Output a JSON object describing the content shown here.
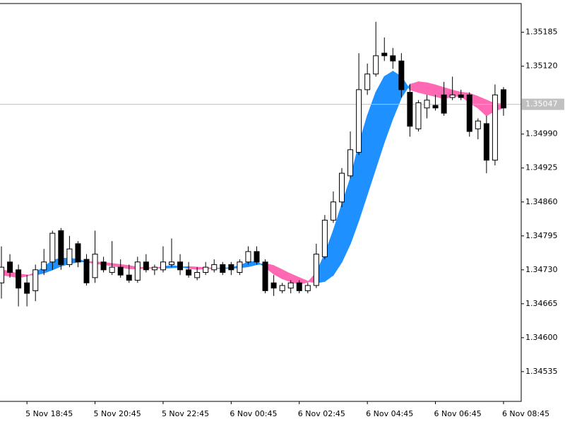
{
  "chart_data": {
    "type": "candlestick",
    "categories": [
      null,
      null,
      null,
      "5 Nov 18:45",
      null,
      null,
      null,
      null,
      null,
      null,
      null,
      "5 Nov 20:45",
      null,
      null,
      null,
      null,
      null,
      null,
      null,
      "5 Nov 22:45",
      null,
      null,
      null,
      null,
      null,
      null,
      null,
      "6 Nov 00:45",
      null,
      null,
      null,
      null,
      null,
      null,
      null,
      "6 Nov 02:45",
      null,
      null,
      null,
      null,
      null,
      null,
      null,
      "6 Nov 04:45",
      null,
      null,
      null,
      null,
      null,
      null,
      null,
      "6 Nov 06:45",
      null,
      null,
      null,
      null,
      null,
      null,
      null,
      "6 Nov 08:45"
    ],
    "open": [
      1.34705,
      1.34745,
      1.3473,
      1.34705,
      1.3469,
      1.3473,
      1.34745,
      1.34805,
      1.3474,
      1.3478,
      1.3475,
      1.34715,
      1.34745,
      1.34725,
      1.34735,
      1.3472,
      1.3471,
      1.34745,
      1.3473,
      1.3473,
      1.3474,
      1.34745,
      1.3473,
      1.34715,
      1.34725,
      1.3473,
      1.3474,
      1.3474,
      1.34725,
      1.34745,
      1.34765,
      1.34745,
      1.34705,
      1.3469,
      1.34695,
      1.34705,
      1.3469,
      1.347,
      1.34755,
      1.34825,
      1.3486,
      1.3491,
      1.34955,
      1.35075,
      1.35105,
      1.35145,
      1.3514,
      1.3513,
      1.3507,
      1.35,
      1.3504,
      1.35045,
      1.35065,
      1.3506,
      1.35065,
      1.35065,
      1.35,
      1.3501,
      1.3494,
      1.35075
    ],
    "high": [
      1.34775,
      1.3476,
      1.3474,
      1.3472,
      1.3474,
      1.3477,
      1.34805,
      1.3481,
      1.34795,
      1.34785,
      1.3476,
      1.34805,
      1.34755,
      1.34785,
      1.3475,
      1.3474,
      1.34755,
      1.3476,
      1.3474,
      1.34775,
      1.3479,
      1.3476,
      1.34745,
      1.34735,
      1.34745,
      1.3475,
      1.34745,
      1.34745,
      1.3475,
      1.34775,
      1.34775,
      1.3475,
      1.3472,
      1.34705,
      1.3471,
      1.3471,
      1.34705,
      1.3478,
      1.34835,
      1.3488,
      1.34925,
      1.34995,
      1.35145,
      1.35125,
      1.35205,
      1.35175,
      1.35155,
      1.35145,
      1.35085,
      1.35055,
      1.35065,
      1.35065,
      1.3509,
      1.351,
      1.35075,
      1.3507,
      1.3502,
      1.35025,
      1.35085,
      1.3508
    ],
    "low": [
      1.34675,
      1.34715,
      1.3466,
      1.3466,
      1.3467,
      1.3472,
      1.3473,
      1.3473,
      1.34735,
      1.34735,
      1.347,
      1.34705,
      1.34725,
      1.3472,
      1.34715,
      1.34705,
      1.34705,
      1.34725,
      1.3472,
      1.34725,
      1.34735,
      1.3472,
      1.34715,
      1.3471,
      1.3472,
      1.34725,
      1.3472,
      1.3472,
      1.3472,
      1.3474,
      1.3474,
      1.34685,
      1.3468,
      1.34685,
      1.34685,
      1.34685,
      1.34685,
      1.34695,
      1.3475,
      1.3482,
      1.3485,
      1.34905,
      1.3495,
      1.35065,
      1.351,
      1.3513,
      1.35115,
      1.3506,
      1.34985,
      1.34995,
      1.3502,
      1.35035,
      1.35025,
      1.35055,
      1.35055,
      1.34985,
      1.3498,
      1.34915,
      1.3493,
      1.35025
    ],
    "close": [
      1.34735,
      1.34725,
      1.34695,
      1.34685,
      1.3473,
      1.34745,
      1.348,
      1.3474,
      1.3477,
      1.34745,
      1.34705,
      1.3476,
      1.3473,
      1.34735,
      1.3472,
      1.3471,
      1.34745,
      1.3473,
      1.34735,
      1.34745,
      1.34745,
      1.3473,
      1.3472,
      1.34725,
      1.34735,
      1.3474,
      1.34725,
      1.3473,
      1.34745,
      1.34765,
      1.34745,
      1.3469,
      1.34695,
      1.347,
      1.34705,
      1.3469,
      1.347,
      1.3476,
      1.34825,
      1.3486,
      1.34915,
      1.3496,
      1.35075,
      1.35105,
      1.3514,
      1.3514,
      1.3513,
      1.35075,
      1.35005,
      1.3505,
      1.35055,
      1.3504,
      1.3503,
      1.35065,
      1.3506,
      1.34995,
      1.35015,
      1.3494,
      1.35065,
      1.3504
    ],
    "cloud": {
      "up_color": "#1e90ff",
      "down_color": "#ff69b4",
      "fast": [
        1.3472,
        1.34718,
        1.34715,
        1.34718,
        1.34725,
        1.34735,
        1.34748,
        1.34752,
        1.34752,
        1.3475,
        1.34745,
        1.34742,
        1.3474,
        1.34738,
        1.34735,
        1.34732,
        1.34732,
        1.34733,
        1.34733,
        1.34736,
        1.34738,
        1.34736,
        1.34733,
        1.34731,
        1.34732,
        1.34733,
        1.34733,
        1.34734,
        1.34738,
        1.34745,
        1.34746,
        1.34735,
        1.34722,
        1.34713,
        1.34707,
        1.34703,
        1.34706,
        1.34725,
        1.3476,
        1.34805,
        1.34855,
        1.34905,
        1.3497,
        1.35025,
        1.3507,
        1.351,
        1.3511,
        1.351,
        1.35075,
        1.3507,
        1.35066,
        1.35062,
        1.35058,
        1.35062,
        1.35063,
        1.3505,
        1.3504,
        1.35025,
        1.35035,
        1.3504
      ],
      "slow": [
        1.3473,
        1.34727,
        1.34722,
        1.3472,
        1.3472,
        1.34724,
        1.3473,
        1.34737,
        1.34742,
        1.34745,
        1.34746,
        1.34745,
        1.34744,
        1.34742,
        1.3474,
        1.34738,
        1.34735,
        1.34734,
        1.34734,
        1.34733,
        1.34734,
        1.34735,
        1.34736,
        1.34735,
        1.34734,
        1.34733,
        1.34733,
        1.34733,
        1.34734,
        1.34736,
        1.3474,
        1.34742,
        1.34738,
        1.3473,
        1.34722,
        1.34715,
        1.34708,
        1.34705,
        1.34708,
        1.3472,
        1.34745,
        1.3478,
        1.34825,
        1.34875,
        1.34925,
        1.34975,
        1.3502,
        1.3506,
        1.35085,
        1.3509,
        1.35088,
        1.35084,
        1.35079,
        1.35074,
        1.3507,
        1.35068,
        1.35062,
        1.35055,
        1.35048,
        1.35048
      ]
    },
    "up_color": "#ffffff",
    "down_color": "#000000",
    "ylim": [
      1.34478,
      1.3524
    ],
    "yticks": [
      {
        "value": 1.34535,
        "label": "1.34535"
      },
      {
        "value": 1.346,
        "label": "1.34600"
      },
      {
        "value": 1.34665,
        "label": "1.34665"
      },
      {
        "value": 1.3473,
        "label": "1.34730"
      },
      {
        "value": 1.34795,
        "label": "1.34795"
      },
      {
        "value": 1.3486,
        "label": "1.34860"
      },
      {
        "value": 1.34925,
        "label": "1.34925"
      },
      {
        "value": 1.3499,
        "label": "1.34990"
      },
      {
        "value": 1.3512,
        "label": "1.35120"
      },
      {
        "value": 1.35185,
        "label": "1.35185"
      }
    ],
    "current_price": 1.35047
  }
}
